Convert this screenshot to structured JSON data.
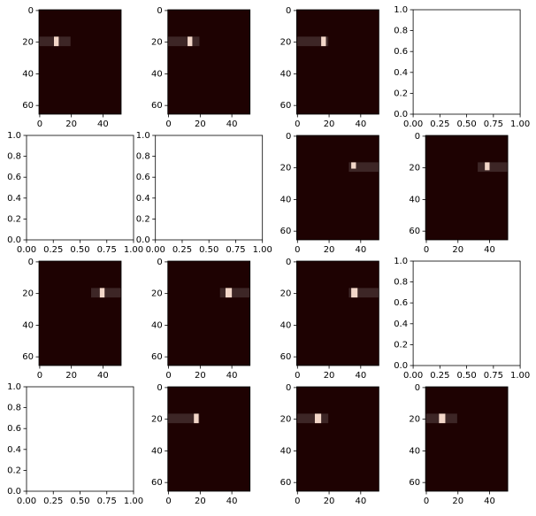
{
  "chart_data": [
    {
      "type": "image",
      "xlim": [
        -0.5,
        51.5
      ],
      "ylim": [
        65.5,
        -0.5
      ],
      "xticks": [
        0,
        20,
        40
      ],
      "yticks": [
        0,
        20,
        40,
        60
      ],
      "background": "#1e0202",
      "highlights": [
        {
          "x": [
            -0.5,
            19.5
          ],
          "y": [
            16.5,
            22.5
          ],
          "color": "#3d2626"
        },
        {
          "x": [
            9,
            12
          ],
          "y": [
            16.5,
            22.5
          ],
          "color": "#f2d6c8"
        }
      ]
    },
    {
      "type": "image",
      "xlim": [
        -0.5,
        51.5
      ],
      "ylim": [
        65.5,
        -0.5
      ],
      "xticks": [
        0,
        20,
        40
      ],
      "yticks": [
        0,
        20,
        40,
        60
      ],
      "background": "#1e0202",
      "highlights": [
        {
          "x": [
            -0.5,
            19.5
          ],
          "y": [
            16.5,
            22.5
          ],
          "color": "#3d2626"
        },
        {
          "x": [
            12,
            15
          ],
          "y": [
            16.5,
            22.5
          ],
          "color": "#f2d6c8"
        }
      ]
    },
    {
      "type": "image",
      "xlim": [
        -0.5,
        51.5
      ],
      "ylim": [
        65.5,
        -0.5
      ],
      "xticks": [
        0,
        20,
        40
      ],
      "yticks": [
        0,
        20,
        40,
        60
      ],
      "background": "#1e0202",
      "highlights": [
        {
          "x": [
            -0.5,
            19.5
          ],
          "y": [
            16.5,
            22.5
          ],
          "color": "#3d2626"
        },
        {
          "x": [
            15,
            18
          ],
          "y": [
            16.5,
            22.5
          ],
          "color": "#f2d6c8"
        }
      ]
    },
    {
      "type": "empty",
      "xlim": [
        0,
        1
      ],
      "ylim": [
        0,
        1
      ],
      "xticks": [
        {
          "value": 0,
          "label": "0.00"
        },
        {
          "value": 0.25,
          "label": "0.25"
        },
        {
          "value": 0.5,
          "label": "0.50"
        },
        {
          "value": 0.75,
          "label": "0.75"
        },
        {
          "value": 1,
          "label": "1.00"
        }
      ],
      "yticks": [
        {
          "value": 0,
          "label": "0.0"
        },
        {
          "value": 0.2,
          "label": "0.2"
        },
        {
          "value": 0.4,
          "label": "0.4"
        },
        {
          "value": 0.6,
          "label": "0.6"
        },
        {
          "value": 0.8,
          "label": "0.8"
        },
        {
          "value": 1,
          "label": "1.0"
        }
      ]
    },
    {
      "type": "empty",
      "xlim": [
        0,
        1
      ],
      "ylim": [
        0,
        1
      ],
      "xticks": [
        {
          "value": 0,
          "label": "0.00"
        },
        {
          "value": 0.25,
          "label": "0.25"
        },
        {
          "value": 0.5,
          "label": "0.50"
        },
        {
          "value": 0.75,
          "label": "0.75"
        },
        {
          "value": 1,
          "label": "1.00"
        }
      ],
      "yticks": [
        {
          "value": 0,
          "label": "0.0"
        },
        {
          "value": 0.2,
          "label": "0.2"
        },
        {
          "value": 0.4,
          "label": "0.4"
        },
        {
          "value": 0.6,
          "label": "0.6"
        },
        {
          "value": 0.8,
          "label": "0.8"
        },
        {
          "value": 1,
          "label": "1.0"
        }
      ]
    },
    {
      "type": "empty",
      "xlim": [
        0,
        1
      ],
      "ylim": [
        0,
        1
      ],
      "xticks": [
        {
          "value": 0,
          "label": "0.00"
        },
        {
          "value": 0.25,
          "label": "0.25"
        },
        {
          "value": 0.5,
          "label": "0.50"
        },
        {
          "value": 0.75,
          "label": "0.75"
        },
        {
          "value": 1,
          "label": "1.00"
        }
      ],
      "yticks": [
        {
          "value": 0,
          "label": "0.0"
        },
        {
          "value": 0.2,
          "label": "0.2"
        },
        {
          "value": 0.4,
          "label": "0.4"
        },
        {
          "value": 0.6,
          "label": "0.6"
        },
        {
          "value": 0.8,
          "label": "0.8"
        },
        {
          "value": 1,
          "label": "1.0"
        }
      ]
    },
    {
      "type": "image",
      "xlim": [
        -0.5,
        51.5
      ],
      "ylim": [
        65.5,
        -0.5
      ],
      "xticks": [
        0,
        20,
        40
      ],
      "yticks": [
        0,
        20,
        40,
        60
      ],
      "background": "#1e0202",
      "highlights": [
        {
          "x": [
            32.5,
            51.5
          ],
          "y": [
            16.5,
            22.5
          ],
          "color": "#3d2626"
        },
        {
          "x": [
            34,
            37
          ],
          "y": [
            16.5,
            20.5
          ],
          "color": "#f2d6c8"
        }
      ]
    },
    {
      "type": "image",
      "xlim": [
        -0.5,
        51.5
      ],
      "ylim": [
        65.5,
        -0.5
      ],
      "xticks": [
        0,
        20,
        40
      ],
      "yticks": [
        0,
        20,
        40,
        60
      ],
      "background": "#1e0202",
      "highlights": [
        {
          "x": [
            32.5,
            51.5
          ],
          "y": [
            16.5,
            22.5
          ],
          "color": "#3d2626"
        },
        {
          "x": [
            37,
            40
          ],
          "y": [
            16.5,
            21.5
          ],
          "color": "#f2d6c8"
        }
      ]
    },
    {
      "type": "image",
      "xlim": [
        -0.5,
        51.5
      ],
      "ylim": [
        65.5,
        -0.5
      ],
      "xticks": [
        0,
        20,
        40
      ],
      "yticks": [
        0,
        20,
        40,
        60
      ],
      "background": "#1e0202",
      "highlights": [
        {
          "x": [
            32.5,
            51.5
          ],
          "y": [
            16.5,
            22.5
          ],
          "color": "#3d2626"
        },
        {
          "x": [
            38,
            41
          ],
          "y": [
            16.5,
            22.5
          ],
          "color": "#f2d6c8"
        }
      ]
    },
    {
      "type": "image",
      "xlim": [
        -0.5,
        51.5
      ],
      "ylim": [
        65.5,
        -0.5
      ],
      "xticks": [
        0,
        20,
        40
      ],
      "yticks": [
        0,
        20,
        40,
        60
      ],
      "background": "#1e0202",
      "highlights": [
        {
          "x": [
            32.5,
            51.5
          ],
          "y": [
            16.5,
            22.5
          ],
          "color": "#3d2626"
        },
        {
          "x": [
            36,
            40
          ],
          "y": [
            16.5,
            22.5
          ],
          "color": "#f2d6c8"
        }
      ]
    },
    {
      "type": "image",
      "xlim": [
        -0.5,
        51.5
      ],
      "ylim": [
        65.5,
        -0.5
      ],
      "xticks": [
        0,
        20,
        40
      ],
      "yticks": [
        0,
        20,
        40,
        60
      ],
      "background": "#1e0202",
      "highlights": [
        {
          "x": [
            32.5,
            51.5
          ],
          "y": [
            16.5,
            22.5
          ],
          "color": "#3d2626"
        },
        {
          "x": [
            34,
            38
          ],
          "y": [
            16.5,
            22.5
          ],
          "color": "#f2d6c8"
        }
      ]
    },
    {
      "type": "empty",
      "xlim": [
        0,
        1
      ],
      "ylim": [
        0,
        1
      ],
      "xticks": [
        {
          "value": 0,
          "label": "0.00"
        },
        {
          "value": 0.25,
          "label": "0.25"
        },
        {
          "value": 0.5,
          "label": "0.50"
        },
        {
          "value": 0.75,
          "label": "0.75"
        },
        {
          "value": 1,
          "label": "1.00"
        }
      ],
      "yticks": [
        {
          "value": 0,
          "label": "0.0"
        },
        {
          "value": 0.2,
          "label": "0.2"
        },
        {
          "value": 0.4,
          "label": "0.4"
        },
        {
          "value": 0.6,
          "label": "0.6"
        },
        {
          "value": 0.8,
          "label": "0.8"
        },
        {
          "value": 1,
          "label": "1.0"
        }
      ]
    },
    {
      "type": "empty",
      "xlim": [
        0,
        1
      ],
      "ylim": [
        0,
        1
      ],
      "xticks": [
        {
          "value": 0,
          "label": "0.00"
        },
        {
          "value": 0.25,
          "label": "0.25"
        },
        {
          "value": 0.5,
          "label": "0.50"
        },
        {
          "value": 0.75,
          "label": "0.75"
        },
        {
          "value": 1,
          "label": "1.00"
        }
      ],
      "yticks": [
        {
          "value": 0,
          "label": "0.0"
        },
        {
          "value": 0.2,
          "label": "0.2"
        },
        {
          "value": 0.4,
          "label": "0.4"
        },
        {
          "value": 0.6,
          "label": "0.6"
        },
        {
          "value": 0.8,
          "label": "0.8"
        },
        {
          "value": 1,
          "label": "1.0"
        }
      ]
    },
    {
      "type": "image",
      "xlim": [
        -0.5,
        51.5
      ],
      "ylim": [
        65.5,
        -0.5
      ],
      "xticks": [
        0,
        20,
        40
      ],
      "yticks": [
        0,
        20,
        40,
        60
      ],
      "background": "#1e0202",
      "highlights": [
        {
          "x": [
            -0.5,
            19.5
          ],
          "y": [
            16.5,
            22.5
          ],
          "color": "#3d2626"
        },
        {
          "x": [
            16,
            19
          ],
          "y": [
            16.5,
            22.5
          ],
          "color": "#f2d6c8"
        }
      ]
    },
    {
      "type": "image",
      "xlim": [
        -0.5,
        51.5
      ],
      "ylim": [
        65.5,
        -0.5
      ],
      "xticks": [
        0,
        20,
        40
      ],
      "yticks": [
        0,
        20,
        40,
        60
      ],
      "background": "#1e0202",
      "highlights": [
        {
          "x": [
            -0.5,
            19.5
          ],
          "y": [
            16.5,
            22.5
          ],
          "color": "#3d2626"
        },
        {
          "x": [
            11,
            15
          ],
          "y": [
            16.5,
            22.5
          ],
          "color": "#f2d6c8"
        }
      ]
    },
    {
      "type": "image",
      "xlim": [
        -0.5,
        51.5
      ],
      "ylim": [
        65.5,
        -0.5
      ],
      "xticks": [
        0,
        20,
        40
      ],
      "yticks": [
        0,
        20,
        40,
        60
      ],
      "background": "#1e0202",
      "highlights": [
        {
          "x": [
            -0.5,
            19.5
          ],
          "y": [
            16.5,
            22.5
          ],
          "color": "#3d2626"
        },
        {
          "x": [
            8,
            12
          ],
          "y": [
            16.5,
            22.5
          ],
          "color": "#f2d6c8"
        }
      ]
    }
  ]
}
